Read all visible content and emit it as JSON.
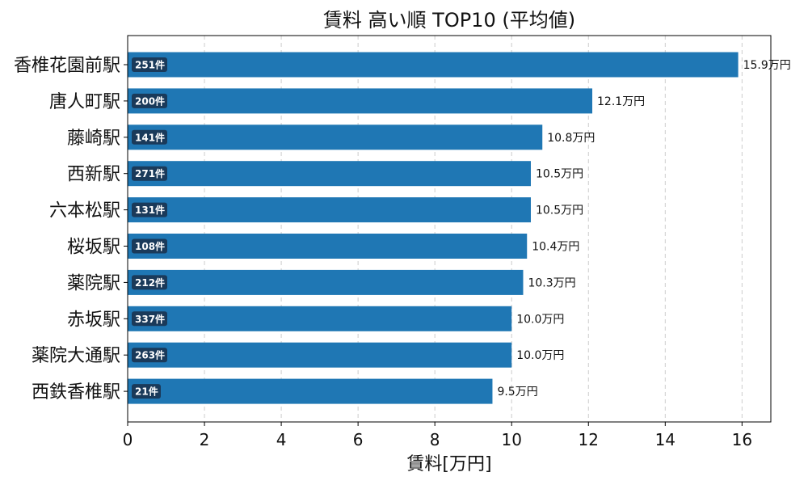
{
  "chart_data": {
    "type": "bar",
    "orientation": "horizontal",
    "title": "賃料 高い順 TOP10 (平均値)",
    "xlabel": "賃料[万円]",
    "ylabel": "",
    "xlim": [
      0,
      16.75
    ],
    "xticks": [
      0,
      2,
      4,
      6,
      8,
      10,
      12,
      14,
      16
    ],
    "grid": "x-dashed",
    "categories": [
      "香椎花園前駅",
      "唐人町駅",
      "藤崎駅",
      "西新駅",
      "六本松駅",
      "桜坂駅",
      "薬院駅",
      "赤坂駅",
      "薬院大通駅",
      "西鉄香椎駅"
    ],
    "values": [
      15.9,
      12.1,
      10.8,
      10.5,
      10.5,
      10.4,
      10.3,
      10.0,
      10.0,
      9.5
    ],
    "value_labels": [
      "15.9万円",
      "12.1万円",
      "10.8万円",
      "10.5万円",
      "10.5万円",
      "10.4万円",
      "10.3万円",
      "10.0万円",
      "10.0万円",
      "9.5万円"
    ],
    "counts": [
      "251件",
      "200件",
      "141件",
      "271件",
      "131件",
      "108件",
      "212件",
      "337件",
      "263件",
      "21件"
    ],
    "colors": {
      "bar": "#1f77b4",
      "badge": "#1a3a5a",
      "grid": "#cccccc"
    }
  }
}
